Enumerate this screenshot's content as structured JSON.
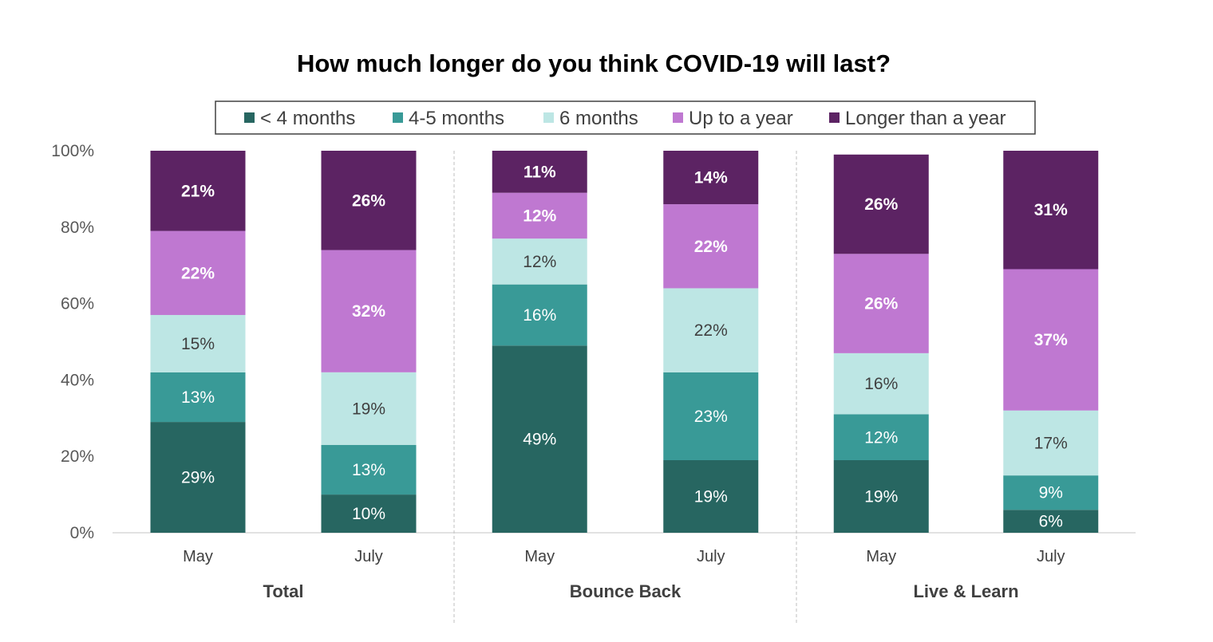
{
  "chart_data": {
    "type": "bar",
    "stacked": true,
    "title": "How much longer do you think COVID-19 will last?",
    "groups": [
      {
        "name": "Total",
        "categories": [
          "May",
          "July"
        ]
      },
      {
        "name": "Bounce Back",
        "categories": [
          "May",
          "July"
        ]
      },
      {
        "name": "Live & Learn",
        "categories": [
          "May",
          "July"
        ]
      }
    ],
    "series": [
      {
        "name": "< 4 months",
        "color": "#276661",
        "label_color": "#ffffff",
        "label_bold": false,
        "values": [
          29,
          10,
          49,
          19,
          19,
          6
        ]
      },
      {
        "name": "4-5 months",
        "color": "#399a97",
        "label_color": "#ffffff",
        "label_bold": false,
        "values": [
          13,
          13,
          16,
          23,
          12,
          9
        ]
      },
      {
        "name": "6 months",
        "color": "#bde6e4",
        "label_color": "#404040",
        "label_bold": false,
        "values": [
          15,
          19,
          12,
          22,
          16,
          17
        ]
      },
      {
        "name": "Up to a year",
        "color": "#bf78d1",
        "label_color": "#ffffff",
        "label_bold": true,
        "values": [
          22,
          32,
          12,
          22,
          26,
          37
        ]
      },
      {
        "name": "Longer than a year",
        "color": "#5c2363",
        "label_color": "#ffffff",
        "label_bold": true,
        "values": [
          21,
          26,
          11,
          14,
          26,
          31
        ]
      }
    ],
    "data_labels": [
      [
        "29%",
        "10%",
        "49%",
        "19%",
        "19%",
        "6%"
      ],
      [
        "13%",
        "13%",
        "16%",
        "23%",
        "12%",
        "9%"
      ],
      [
        "15%",
        "19%",
        "12%",
        "22%",
        "16%",
        "17%"
      ],
      [
        "22%",
        "32%",
        "12%",
        "22%",
        "26%",
        "37%"
      ],
      [
        "21%",
        "26%",
        "11%",
        "14%",
        "26%",
        "31%"
      ]
    ],
    "y_ticks": [
      "0%",
      "20%",
      "40%",
      "60%",
      "80%",
      "100%"
    ],
    "ylim": [
      0,
      100
    ],
    "legend_position": "top",
    "grid": false
  }
}
